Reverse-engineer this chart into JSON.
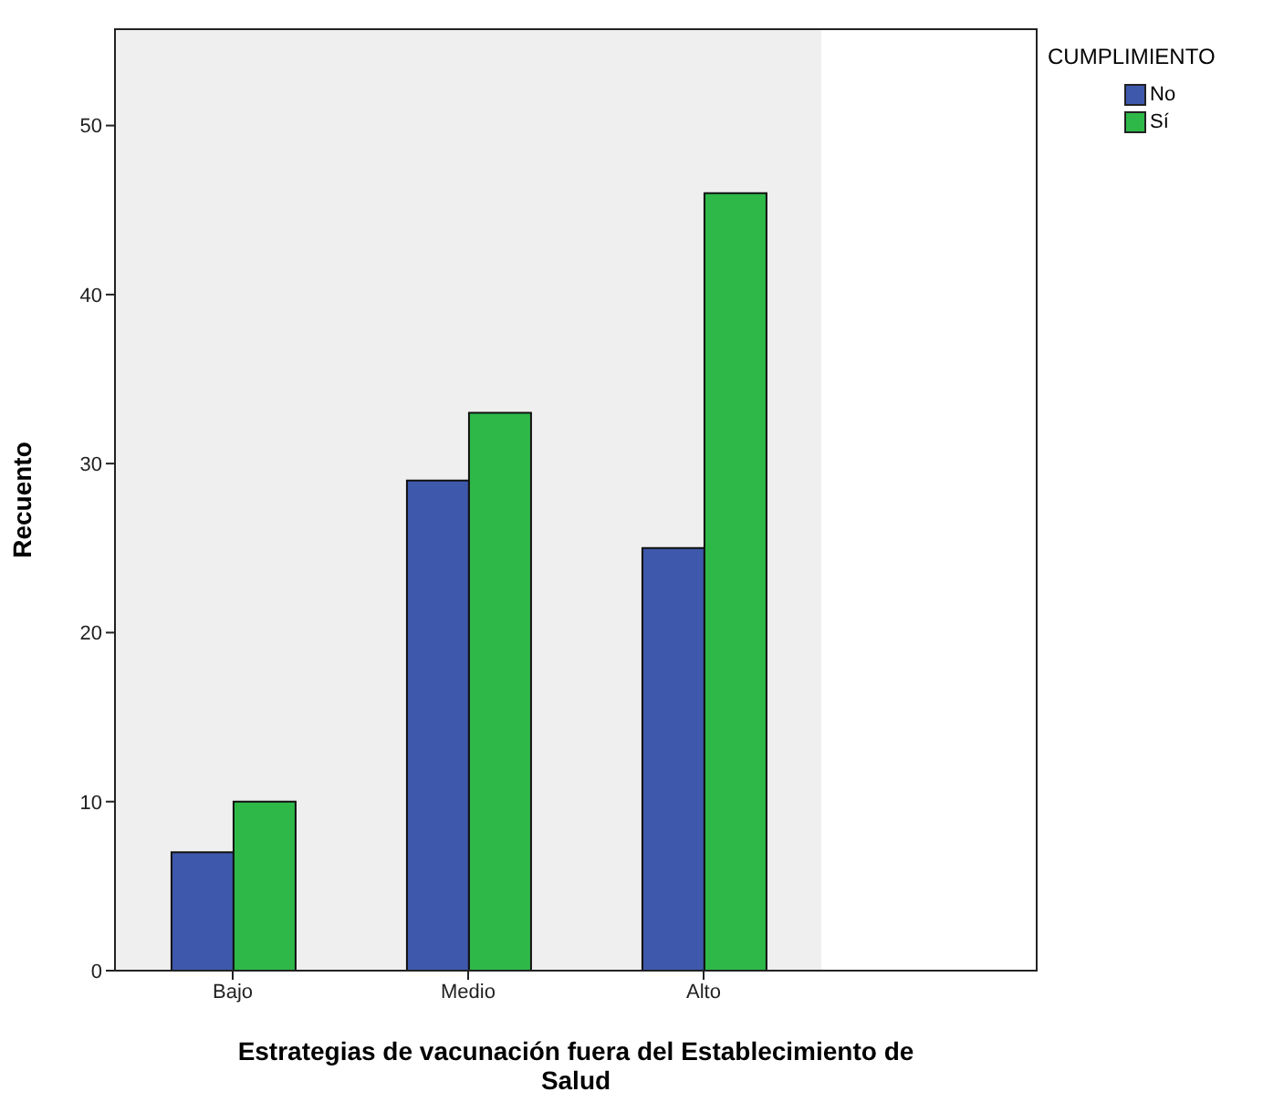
{
  "chart_data": {
    "type": "bar",
    "xlabel": "Estrategias de vacunación fuera del Establecimiento de Salud",
    "ylabel": "Recuento",
    "legend_title": "CUMPLIMIENTO",
    "legend": "top right",
    "categories": [
      "Bajo",
      "Medio",
      "Alto"
    ],
    "series": [
      {
        "name": "No",
        "color": "#3e58ac",
        "values": [
          7,
          29,
          25
        ]
      },
      {
        "name": "Sí",
        "color": "#2eb848",
        "values": [
          10,
          33,
          46
        ]
      }
    ],
    "ylim": [
      0,
      55.7
    ],
    "yticks": [
      0,
      10,
      20,
      30,
      40,
      50
    ]
  }
}
